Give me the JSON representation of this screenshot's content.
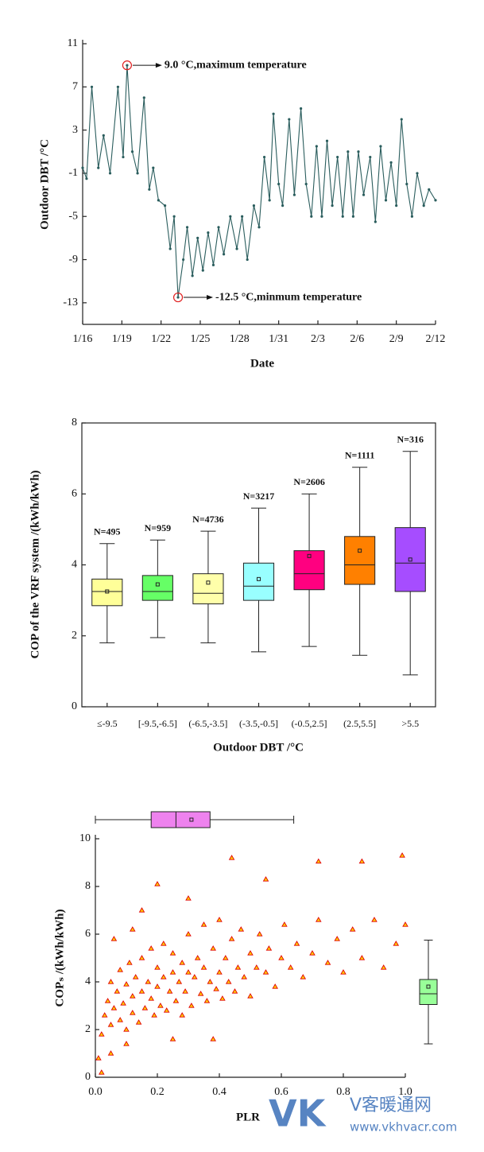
{
  "chart_data": [
    {
      "type": "line",
      "x_label": "Date",
      "y_label": "Outdoor DBT /°C",
      "x": [
        0,
        0.3,
        0.7,
        1.2,
        1.6,
        2.1,
        2.7,
        3.1,
        3.4,
        3.8,
        4.2,
        4.7,
        5.1,
        5.4,
        5.8,
        6.3,
        6.7,
        7.0,
        7.3,
        7.7,
        8.0,
        8.4,
        8.8,
        9.2,
        9.6,
        10.0,
        10.4,
        10.8,
        11.3,
        11.8,
        12.2,
        12.6,
        13.1,
        13.5,
        13.9,
        14.3,
        14.6,
        15.0,
        15.3,
        15.8,
        16.2,
        16.7,
        17.1,
        17.5,
        17.9,
        18.3,
        18.7,
        19.1,
        19.5,
        19.9,
        20.3,
        20.7,
        21.1,
        21.5,
        22.0,
        22.4,
        22.8,
        23.2,
        23.6,
        24.0,
        24.4,
        24.8,
        25.2,
        25.6,
        26.1,
        26.5,
        27.0
      ],
      "values": [
        -0.5,
        -1.5,
        7.0,
        -0.5,
        2.5,
        -1.0,
        7.0,
        0.5,
        9.0,
        1.0,
        -1.0,
        6.0,
        -2.5,
        -0.5,
        -3.5,
        -4.0,
        -8.0,
        -5.0,
        -12.5,
        -9.0,
        -6.0,
        -10.5,
        -7.0,
        -10.0,
        -6.5,
        -9.5,
        -6.0,
        -8.5,
        -5.0,
        -8.0,
        -5.0,
        -9.0,
        -4.0,
        -6.0,
        0.5,
        -3.5,
        4.5,
        -2.0,
        -4.0,
        4.0,
        -3.0,
        5.0,
        -2.0,
        -5.0,
        1.5,
        -5.0,
        2.0,
        -4.0,
        0.5,
        -5.0,
        1.0,
        -5.0,
        1.0,
        -3.0,
        0.5,
        -5.5,
        1.5,
        -3.5,
        0.0,
        -4.0,
        4.0,
        -2.0,
        -5.0,
        -1.0,
        -4.0,
        -2.5,
        -3.5
      ],
      "color": "#2a5d5d",
      "annotations": [
        "9.0 °C,maximum temperature",
        "-12.5 °C,minmum temperature"
      ],
      "xlim": [
        0,
        27
      ],
      "xticks": [
        {
          "value": 0,
          "label": "1/16"
        },
        {
          "value": 3,
          "label": "1/19"
        },
        {
          "value": 6,
          "label": "1/22"
        },
        {
          "value": 9,
          "label": "1/25"
        },
        {
          "value": 12,
          "label": "1/28"
        },
        {
          "value": 15,
          "label": "1/31"
        },
        {
          "value": 18,
          "label": "2/3"
        },
        {
          "value": 21,
          "label": "2/6"
        },
        {
          "value": 24,
          "label": "2/9"
        },
        {
          "value": 27,
          "label": "2/12"
        }
      ],
      "ylim": [
        -15,
        11
      ],
      "yticks": [
        -13,
        -9,
        -5,
        -1,
        3,
        7,
        11
      ]
    },
    {
      "type": "box",
      "x_label": "Outdoor DBT /°C",
      "y_label": "COP of the VRF system  /(kWh/kWh)",
      "categories": [
        "≤-9.5",
        "[-9.5,-6.5]",
        "(-6.5,-3.5]",
        "(-3.5,-0.5]",
        "(-0.5,2.5]",
        "(2.5,5.5]",
        ">5.5"
      ],
      "whislo": [
        1.8,
        1.95,
        1.8,
        1.55,
        1.7,
        1.45,
        0.9
      ],
      "q1": [
        2.85,
        3.0,
        2.9,
        3.0,
        3.3,
        3.45,
        3.25
      ],
      "median": [
        3.25,
        3.25,
        3.2,
        3.4,
        3.75,
        4.0,
        4.05
      ],
      "q3": [
        3.6,
        3.7,
        3.75,
        4.05,
        4.4,
        4.8,
        5.05
      ],
      "whishi": [
        4.6,
        4.7,
        4.95,
        5.6,
        6.0,
        6.75,
        7.2
      ],
      "mean": [
        3.25,
        3.45,
        3.5,
        3.6,
        4.25,
        4.4,
        4.15
      ],
      "n": [
        495,
        959,
        4736,
        3217,
        2606,
        1111,
        316
      ],
      "n_labels": [
        "N=495",
        "N=959",
        "N=4736",
        "N=3217",
        "N=2606",
        "N=1111",
        "N=316"
      ],
      "colors": [
        "#ffff99",
        "#66ff66",
        "#ffffaa",
        "#99ffff",
        "#ff0080",
        "#ff8000",
        "#a64dff"
      ],
      "ylim": [
        0,
        8
      ],
      "yticks": [
        0,
        2,
        4,
        6,
        8
      ]
    },
    {
      "type": "scatter",
      "x_label": "PLR",
      "y_label": "COPₛ /(kWh/kWh)",
      "x": [
        0.01,
        0.02,
        0.03,
        0.04,
        0.05,
        0.05,
        0.06,
        0.07,
        0.08,
        0.08,
        0.09,
        0.1,
        0.1,
        0.11,
        0.12,
        0.12,
        0.13,
        0.14,
        0.15,
        0.15,
        0.16,
        0.17,
        0.18,
        0.18,
        0.19,
        0.2,
        0.2,
        0.21,
        0.22,
        0.22,
        0.23,
        0.24,
        0.25,
        0.25,
        0.26,
        0.27,
        0.28,
        0.28,
        0.29,
        0.3,
        0.3,
        0.31,
        0.32,
        0.33,
        0.34,
        0.35,
        0.35,
        0.36,
        0.37,
        0.38,
        0.39,
        0.4,
        0.4,
        0.41,
        0.42,
        0.43,
        0.44,
        0.45,
        0.46,
        0.47,
        0.48,
        0.5,
        0.5,
        0.52,
        0.53,
        0.55,
        0.56,
        0.58,
        0.6,
        0.61,
        0.63,
        0.65,
        0.67,
        0.7,
        0.72,
        0.75,
        0.78,
        0.8,
        0.83,
        0.86,
        0.9,
        0.93,
        0.97,
        1.0,
        0.2,
        0.44,
        0.3,
        0.72,
        0.86,
        0.99,
        0.15,
        0.55,
        0.02,
        0.05,
        0.1,
        0.25,
        0.38,
        0.06,
        0.12
      ],
      "values": [
        0.8,
        1.8,
        2.6,
        3.2,
        2.2,
        4.0,
        2.9,
        3.6,
        2.4,
        4.5,
        3.1,
        2.0,
        3.9,
        4.8,
        2.7,
        3.4,
        4.2,
        2.3,
        3.6,
        5.0,
        2.9,
        4.0,
        3.3,
        5.4,
        2.6,
        3.8,
        4.6,
        3.0,
        4.2,
        5.6,
        2.8,
        3.6,
        4.4,
        5.2,
        3.2,
        4.0,
        2.6,
        4.8,
        3.6,
        4.4,
        6.0,
        3.0,
        4.2,
        5.0,
        3.5,
        4.6,
        6.4,
        3.2,
        4.0,
        5.4,
        3.7,
        4.4,
        6.6,
        3.3,
        5.0,
        4.0,
        5.8,
        3.6,
        4.6,
        6.2,
        4.2,
        5.2,
        3.4,
        4.6,
        6.0,
        4.4,
        5.4,
        3.8,
        5.0,
        6.4,
        4.6,
        5.6,
        4.2,
        5.2,
        6.6,
        4.8,
        5.8,
        4.4,
        6.2,
        5.0,
        6.6,
        4.6,
        5.6,
        6.4,
        8.1,
        9.2,
        7.5,
        9.05,
        9.05,
        9.3,
        7.0,
        8.3,
        0.2,
        1.0,
        1.4,
        1.6,
        1.6,
        5.8,
        6.2
      ],
      "color": "#e00000",
      "fill": "#ffcc00",
      "x_box": {
        "whislo": 0,
        "q1": 0.18,
        "median": 0.26,
        "q3": 0.37,
        "whishi": 0.64,
        "mean": 0.31,
        "color": "#ee82ee"
      },
      "y_box": {
        "whislo": 1.4,
        "q1": 3.05,
        "median": 3.5,
        "q3": 4.1,
        "whishi": 5.75,
        "mean": 3.8,
        "color": "#99ff99"
      },
      "xlim": [
        0,
        1
      ],
      "xticks": [
        {
          "value": 0,
          "label": "0.0"
        },
        0.2,
        0.4,
        0.6,
        0.8,
        {
          "value": 1,
          "label": "1.0"
        }
      ],
      "ylim": [
        0,
        10
      ],
      "yticks": [
        0,
        2,
        4,
        6,
        8,
        10
      ]
    }
  ],
  "watermark": {
    "logo": "VK",
    "name": "V客暖通网",
    "url": "www.vkhvacr.com"
  }
}
